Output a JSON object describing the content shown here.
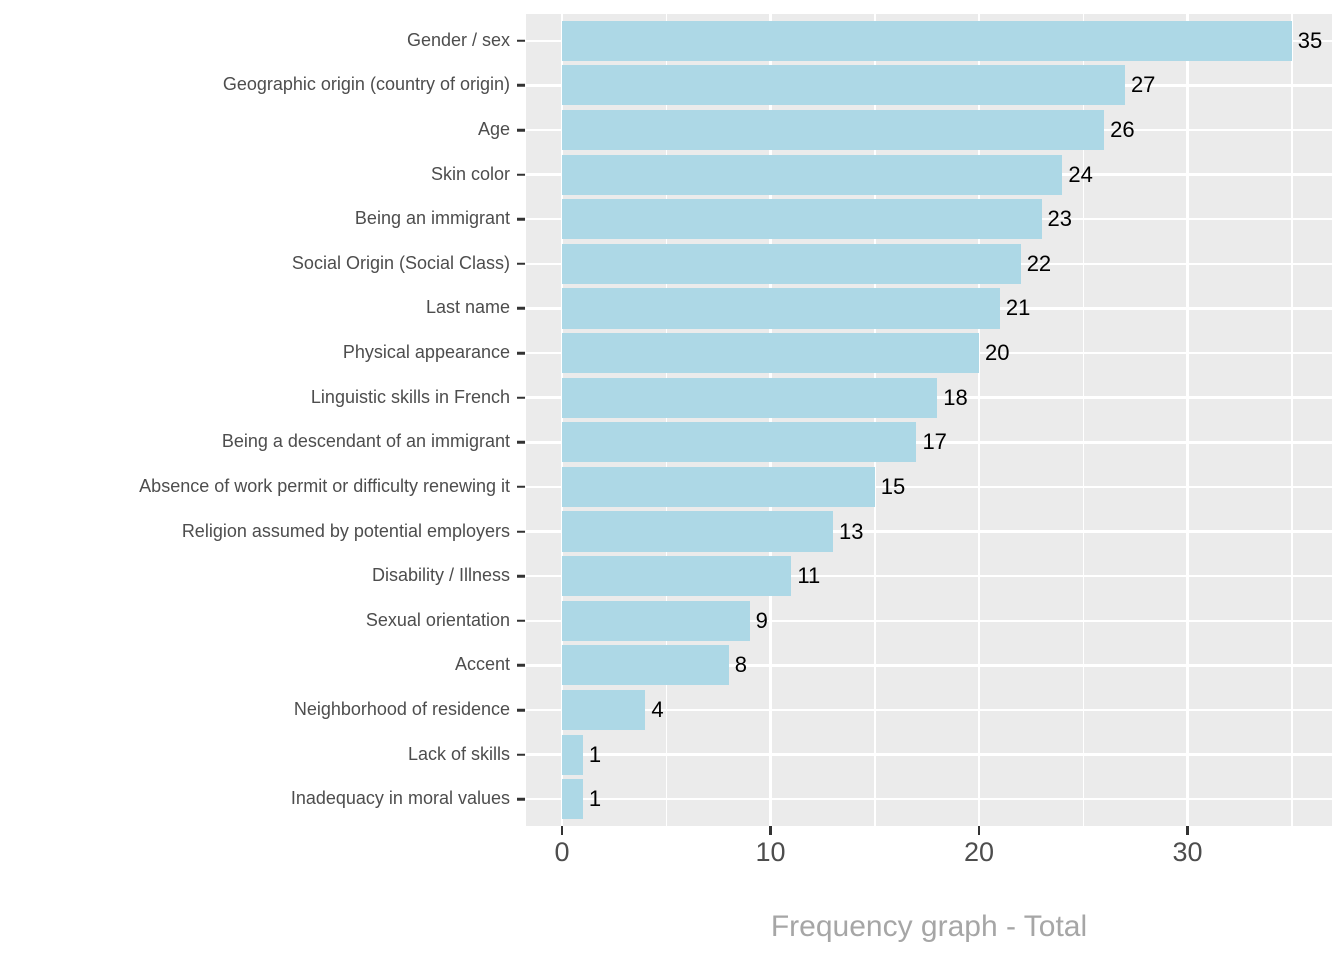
{
  "chart_data": {
    "type": "bar",
    "orientation": "horizontal",
    "title": "",
    "xlabel": "Frequency graph - Total",
    "ylabel": "",
    "categories": [
      "Gender / sex",
      "Geographic origin (country of origin)",
      "Age",
      "Skin color",
      "Being an immigrant",
      "Social Origin (Social Class)",
      "Last name",
      "Physical appearance",
      "Linguistic skills in French",
      "Being a descendant of an immigrant",
      "Absence of work permit or difficulty renewing it",
      "Religion assumed by potential employers",
      "Disability / Illness",
      "Sexual orientation",
      "Accent",
      "Neighborhood of residence",
      "Lack of skills",
      "Inadequacy in moral values"
    ],
    "values": [
      35,
      27,
      26,
      24,
      23,
      22,
      21,
      20,
      18,
      17,
      15,
      13,
      11,
      9,
      8,
      4,
      1,
      1
    ],
    "data_labels_shown": true,
    "x_ticks": [
      0,
      10,
      20,
      30
    ],
    "x_minor_ticks": [
      5,
      15,
      25,
      35
    ],
    "xlim": [
      -1.75,
      36.9
    ],
    "grid": true,
    "legend": "none",
    "colors": {
      "bar_fill": "#ADD8E6",
      "panel_background": "#EBEBEB",
      "gridline": "#FFFFFF",
      "axis_text": "#4D4D4D",
      "tick_mark": "#333333",
      "value_label": "#000000",
      "axis_title": "#A6A6A6",
      "figure_background": "#FFFFFF"
    }
  }
}
